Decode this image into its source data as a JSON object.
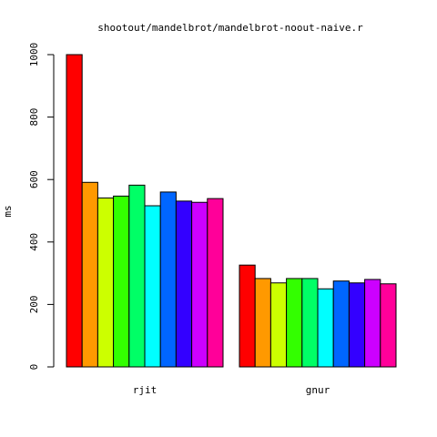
{
  "chart_data": {
    "type": "bar",
    "title": "shootout/mandelbrot/mandelbrot-noout-naive.r",
    "xlabel": "",
    "ylabel": "ms",
    "ylim": [
      0,
      1000
    ],
    "y_ticks": [
      "0",
      "200",
      "400",
      "600",
      "800",
      "1000"
    ],
    "categories": [
      "rjit",
      "gnur"
    ],
    "grid": false,
    "legend": "none",
    "colors": [
      "#FF0000",
      "#FF9900",
      "#CCFF00",
      "#33FF00",
      "#00FF66",
      "#00FFFF",
      "#0066FF",
      "#3300FF",
      "#CC00FF",
      "#FF0099"
    ],
    "groups": [
      {
        "label": "rjit",
        "values": [
          1000,
          591,
          541,
          547,
          582,
          516,
          560,
          531,
          527,
          539
        ]
      },
      {
        "label": "gnur",
        "values": [
          326,
          283,
          269,
          283,
          283,
          250,
          275,
          269,
          280,
          266
        ]
      }
    ]
  }
}
